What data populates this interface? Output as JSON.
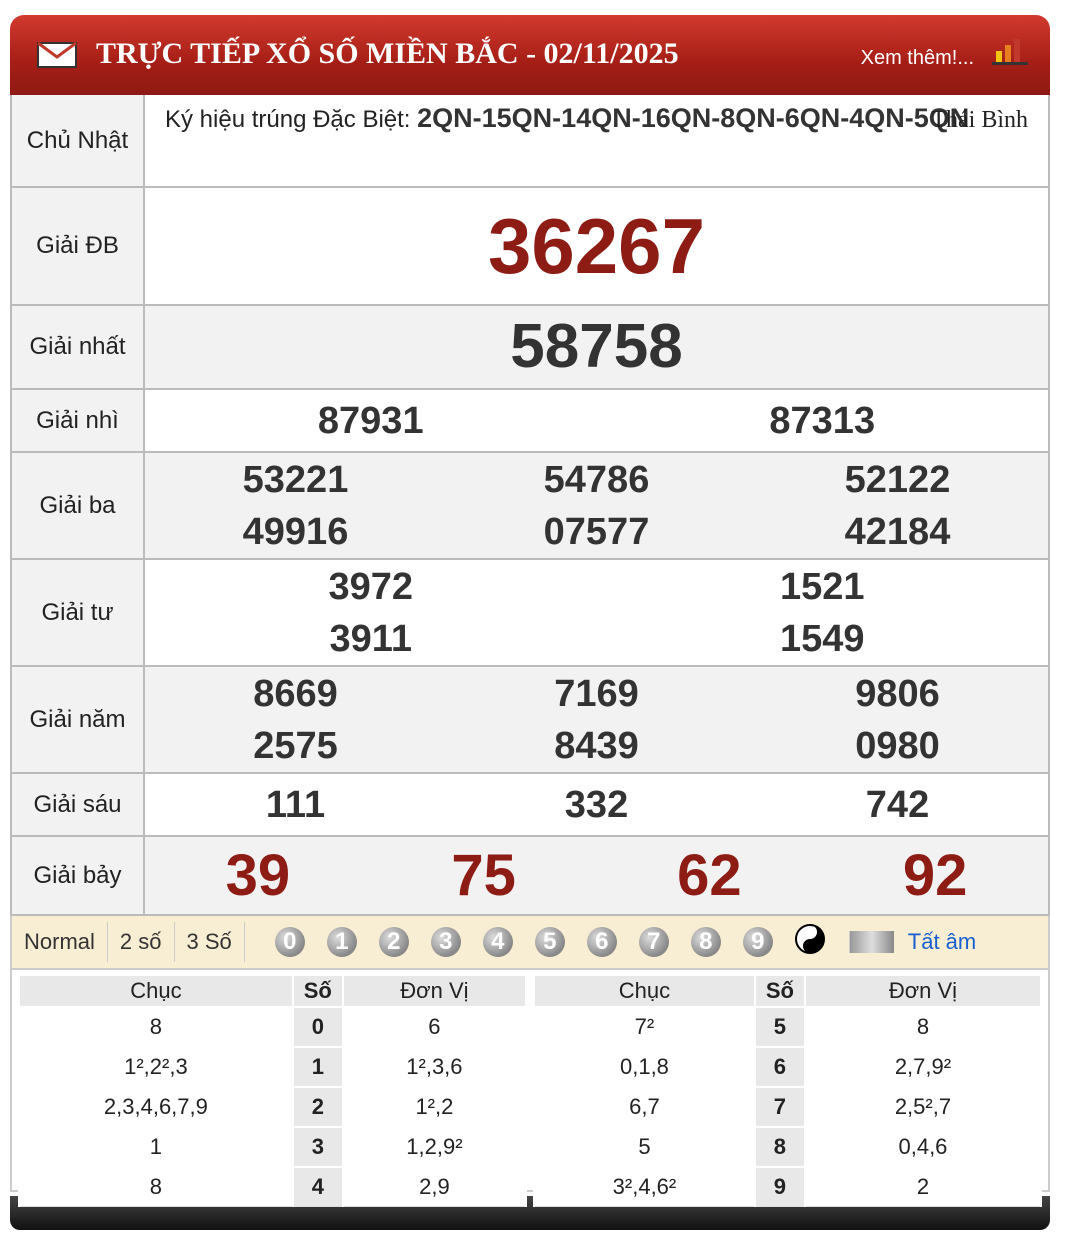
{
  "header": {
    "title": "TRỰC TIẾP XỔ SỐ MIỀN BẮC - 02/11/2025",
    "more": "Xem thêm!..."
  },
  "info": {
    "day": "Chủ Nhật",
    "symbol_label": "Ký hiệu trúng Đặc Biệt:",
    "symbol": "2QN-15QN-14QN-16QN-8QN-6QN-4QN-5QN",
    "province": "Thái Bình"
  },
  "prizes": [
    {
      "label": "Giải ĐB",
      "numbers": [
        "36267"
      ]
    },
    {
      "label": "Giải nhất",
      "numbers": [
        "58758"
      ]
    },
    {
      "label": "Giải nhì",
      "numbers": [
        "87931",
        "87313"
      ]
    },
    {
      "label": "Giải ba",
      "numbers": [
        "53221",
        "54786",
        "52122",
        "49916",
        "07577",
        "42184"
      ]
    },
    {
      "label": "Giải tư",
      "numbers": [
        "3972",
        "1521",
        "3911",
        "1549"
      ]
    },
    {
      "label": "Giải năm",
      "numbers": [
        "8669",
        "7169",
        "9806",
        "2575",
        "8439",
        "0980"
      ]
    },
    {
      "label": "Giải sáu",
      "numbers": [
        "111",
        "332",
        "742"
      ]
    },
    {
      "label": "Giải bảy",
      "numbers": [
        "39",
        "75",
        "62",
        "92"
      ]
    }
  ],
  "toolbar": {
    "modes": [
      "Normal",
      "2 số",
      "3 Số"
    ],
    "digits": [
      "0",
      "1",
      "2",
      "3",
      "4",
      "5",
      "6",
      "7",
      "8",
      "9"
    ],
    "mute": "Tất âm"
  },
  "loto": {
    "headers": [
      "Chục",
      "Số",
      "Đơn Vị"
    ],
    "tables": [
      [
        {
          "chuc": "8",
          "so": "0",
          "donvi": "6"
        },
        {
          "chuc": "1²,2²,3",
          "so": "1",
          "donvi": "1²,3,6"
        },
        {
          "chuc": "2,3,4,6,7,9",
          "so": "2",
          "donvi": "1²,2"
        },
        {
          "chuc": "1",
          "so": "3",
          "donvi": "1,2,9²"
        },
        {
          "chuc": "8",
          "so": "4",
          "donvi": "2,9"
        }
      ],
      [
        {
          "chuc": "7²",
          "so": "5",
          "donvi": "8"
        },
        {
          "chuc": "0,1,8",
          "so": "6",
          "donvi": "2,7,9²"
        },
        {
          "chuc": "6,7",
          "so": "7",
          "donvi": "2,5²,7"
        },
        {
          "chuc": "5",
          "so": "8",
          "donvi": "0,4,6"
        },
        {
          "chuc": "3²,4,6²",
          "so": "9",
          "donvi": "2"
        }
      ]
    ]
  }
}
